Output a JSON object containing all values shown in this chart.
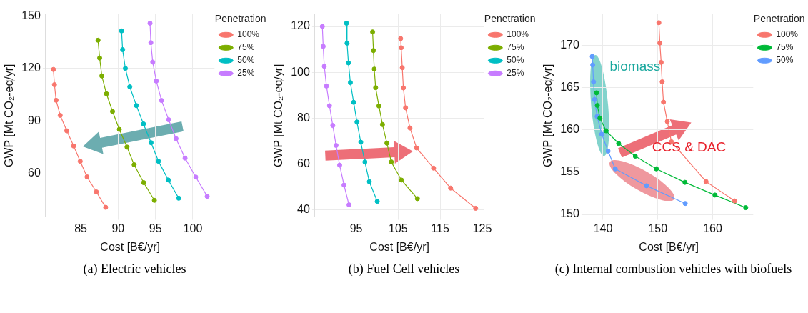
{
  "chart_data": [
    {
      "type": "line",
      "title": "(a)  Electric vehicles",
      "xlabel": "Cost [B€/yr]",
      "ylabel": "GWP [Mt CO₂-eq/yr]",
      "legend_title": "Penetration",
      "legend": "right",
      "marker": "circle",
      "grid": true,
      "xlim": [
        80.3,
        102.9
      ],
      "ylim": [
        35.3,
        151
      ],
      "xticks": [
        85,
        90,
        95,
        100
      ],
      "yticks": [
        60,
        90,
        120,
        150
      ],
      "series": [
        {
          "name": "100%",
          "color": "#f8766d",
          "x": [
            81.34,
            81.48,
            81.7,
            82.25,
            83.13,
            84.05,
            84.93,
            85.84,
            87.09,
            88.33
          ],
          "values": [
            119.5,
            110.8,
            101.9,
            93.3,
            84.5,
            75.8,
            67.1,
            58.2,
            49.6,
            40.8
          ]
        },
        {
          "name": "75%",
          "color": "#7cae00",
          "x": [
            87.31,
            87.53,
            87.82,
            88.44,
            89.25,
            90.16,
            91.19,
            92.14,
            93.42,
            94.85
          ],
          "values": [
            136.2,
            126.0,
            115.8,
            105.6,
            95.5,
            85.3,
            75.2,
            65.1,
            54.9,
            44.8
          ]
        },
        {
          "name": "50%",
          "color": "#00bfc4",
          "x": [
            90.46,
            90.6,
            90.97,
            91.56,
            92.44,
            93.39,
            94.41,
            95.4,
            96.72,
            98.11
          ],
          "values": [
            141.5,
            130.8,
            120.1,
            109.6,
            98.9,
            88.4,
            77.7,
            67.1,
            56.4,
            46.0
          ]
        },
        {
          "name": "25%",
          "color": "#c77cff",
          "x": [
            94.27,
            94.38,
            94.63,
            95.11,
            95.81,
            96.76,
            97.75,
            98.96,
            100.39,
            101.92
          ],
          "values": [
            145.9,
            134.8,
            123.7,
            112.9,
            101.8,
            90.8,
            80.0,
            68.9,
            58.1,
            47.1
          ]
        }
      ]
    },
    {
      "type": "line",
      "title": "(b)  Fuel Cell vehicles",
      "xlabel": "Cost [B€/yr]",
      "ylabel": "GWP [Mt CO₂-eq/yr]",
      "legend_title": "Penetration",
      "legend": "right",
      "marker": "circle",
      "grid": true,
      "xlim": [
        85.2,
        125.4
      ],
      "ylim": [
        36.9,
        125.3
      ],
      "xticks": [
        95,
        105,
        115,
        125
      ],
      "yticks": [
        40,
        60,
        80,
        100,
        120
      ],
      "series": [
        {
          "name": "100%",
          "color": "#f8766d",
          "x": [
            105.59,
            105.72,
            105.98,
            106.24,
            106.76,
            107.81,
            109.38,
            113.43,
            117.48,
            123.43
          ],
          "values": [
            114.7,
            110.7,
            102.0,
            93.2,
            84.5,
            75.7,
            67.0,
            58.2,
            49.5,
            40.7
          ]
        },
        {
          "name": "75%",
          "color": "#7cae00",
          "x": [
            98.92,
            99.12,
            99.31,
            99.64,
            100.42,
            101.27,
            102.32,
            103.37,
            105.78,
            109.58
          ],
          "values": [
            117.6,
            109.5,
            101.4,
            93.3,
            85.3,
            77.2,
            69.1,
            60.9,
            53.0,
            44.9
          ]
        },
        {
          "name": "50%",
          "color": "#00bfc4",
          "x": [
            92.71,
            92.84,
            93.17,
            93.63,
            94.41,
            95.2,
            96.11,
            97.09,
            98.14,
            100.03
          ],
          "values": [
            121.4,
            112.7,
            104.1,
            95.5,
            86.9,
            78.3,
            69.5,
            60.9,
            52.3,
            43.7
          ]
        },
        {
          "name": "25%",
          "color": "#c77cff",
          "x": [
            86.96,
            87.16,
            87.42,
            87.94,
            88.66,
            89.44,
            90.23,
            91.08,
            92.12,
            93.3
          ],
          "values": [
            120.0,
            111.3,
            102.6,
            94.0,
            85.4,
            76.8,
            68.1,
            59.5,
            50.8,
            42.2
          ]
        }
      ]
    },
    {
      "type": "line",
      "title": "(c)  Internal combustion vehicles with biofuels",
      "xlabel": "Cost [B€/yr]",
      "ylabel": "GWP [Mt CO₂-eq/yr]",
      "legend_title": "Penetration",
      "legend": "right",
      "marker": "circle",
      "grid": true,
      "xlim": [
        136.6,
        167.4
      ],
      "ylim": [
        149.7,
        173.7
      ],
      "xticks": [
        140,
        150,
        160
      ],
      "yticks": [
        150,
        155,
        160,
        165,
        170
      ],
      "annotations": [
        "biomass",
        "CCS & DAC"
      ],
      "series": [
        {
          "name": "100%",
          "color": "#f8766d",
          "x": [
            150.19,
            150.37,
            150.61,
            150.79,
            151.03,
            151.73,
            152.48,
            158.79,
            164.02
          ],
          "values": [
            172.7,
            170.3,
            168.0,
            165.7,
            163.3,
            161.0,
            158.6,
            153.9,
            151.6
          ]
        },
        {
          "name": "75%",
          "color": "#00ba38",
          "x": [
            138.83,
            138.97,
            139.44,
            140.56,
            142.85,
            145.89,
            149.72,
            154.95,
            160.42,
            166.03
          ],
          "values": [
            164.4,
            162.9,
            161.4,
            159.9,
            158.4,
            156.9,
            155.4,
            153.8,
            152.3,
            150.8
          ]
        },
        {
          "name": "50%",
          "color": "#619cff",
          "x": [
            138.04,
            138.13,
            138.27,
            138.46,
            138.93,
            139.77,
            140.93,
            142.24,
            147.94,
            155.0
          ],
          "values": [
            168.7,
            167.7,
            165.7,
            163.6,
            161.6,
            159.5,
            157.5,
            155.4,
            153.4,
            151.3
          ]
        }
      ]
    }
  ]
}
